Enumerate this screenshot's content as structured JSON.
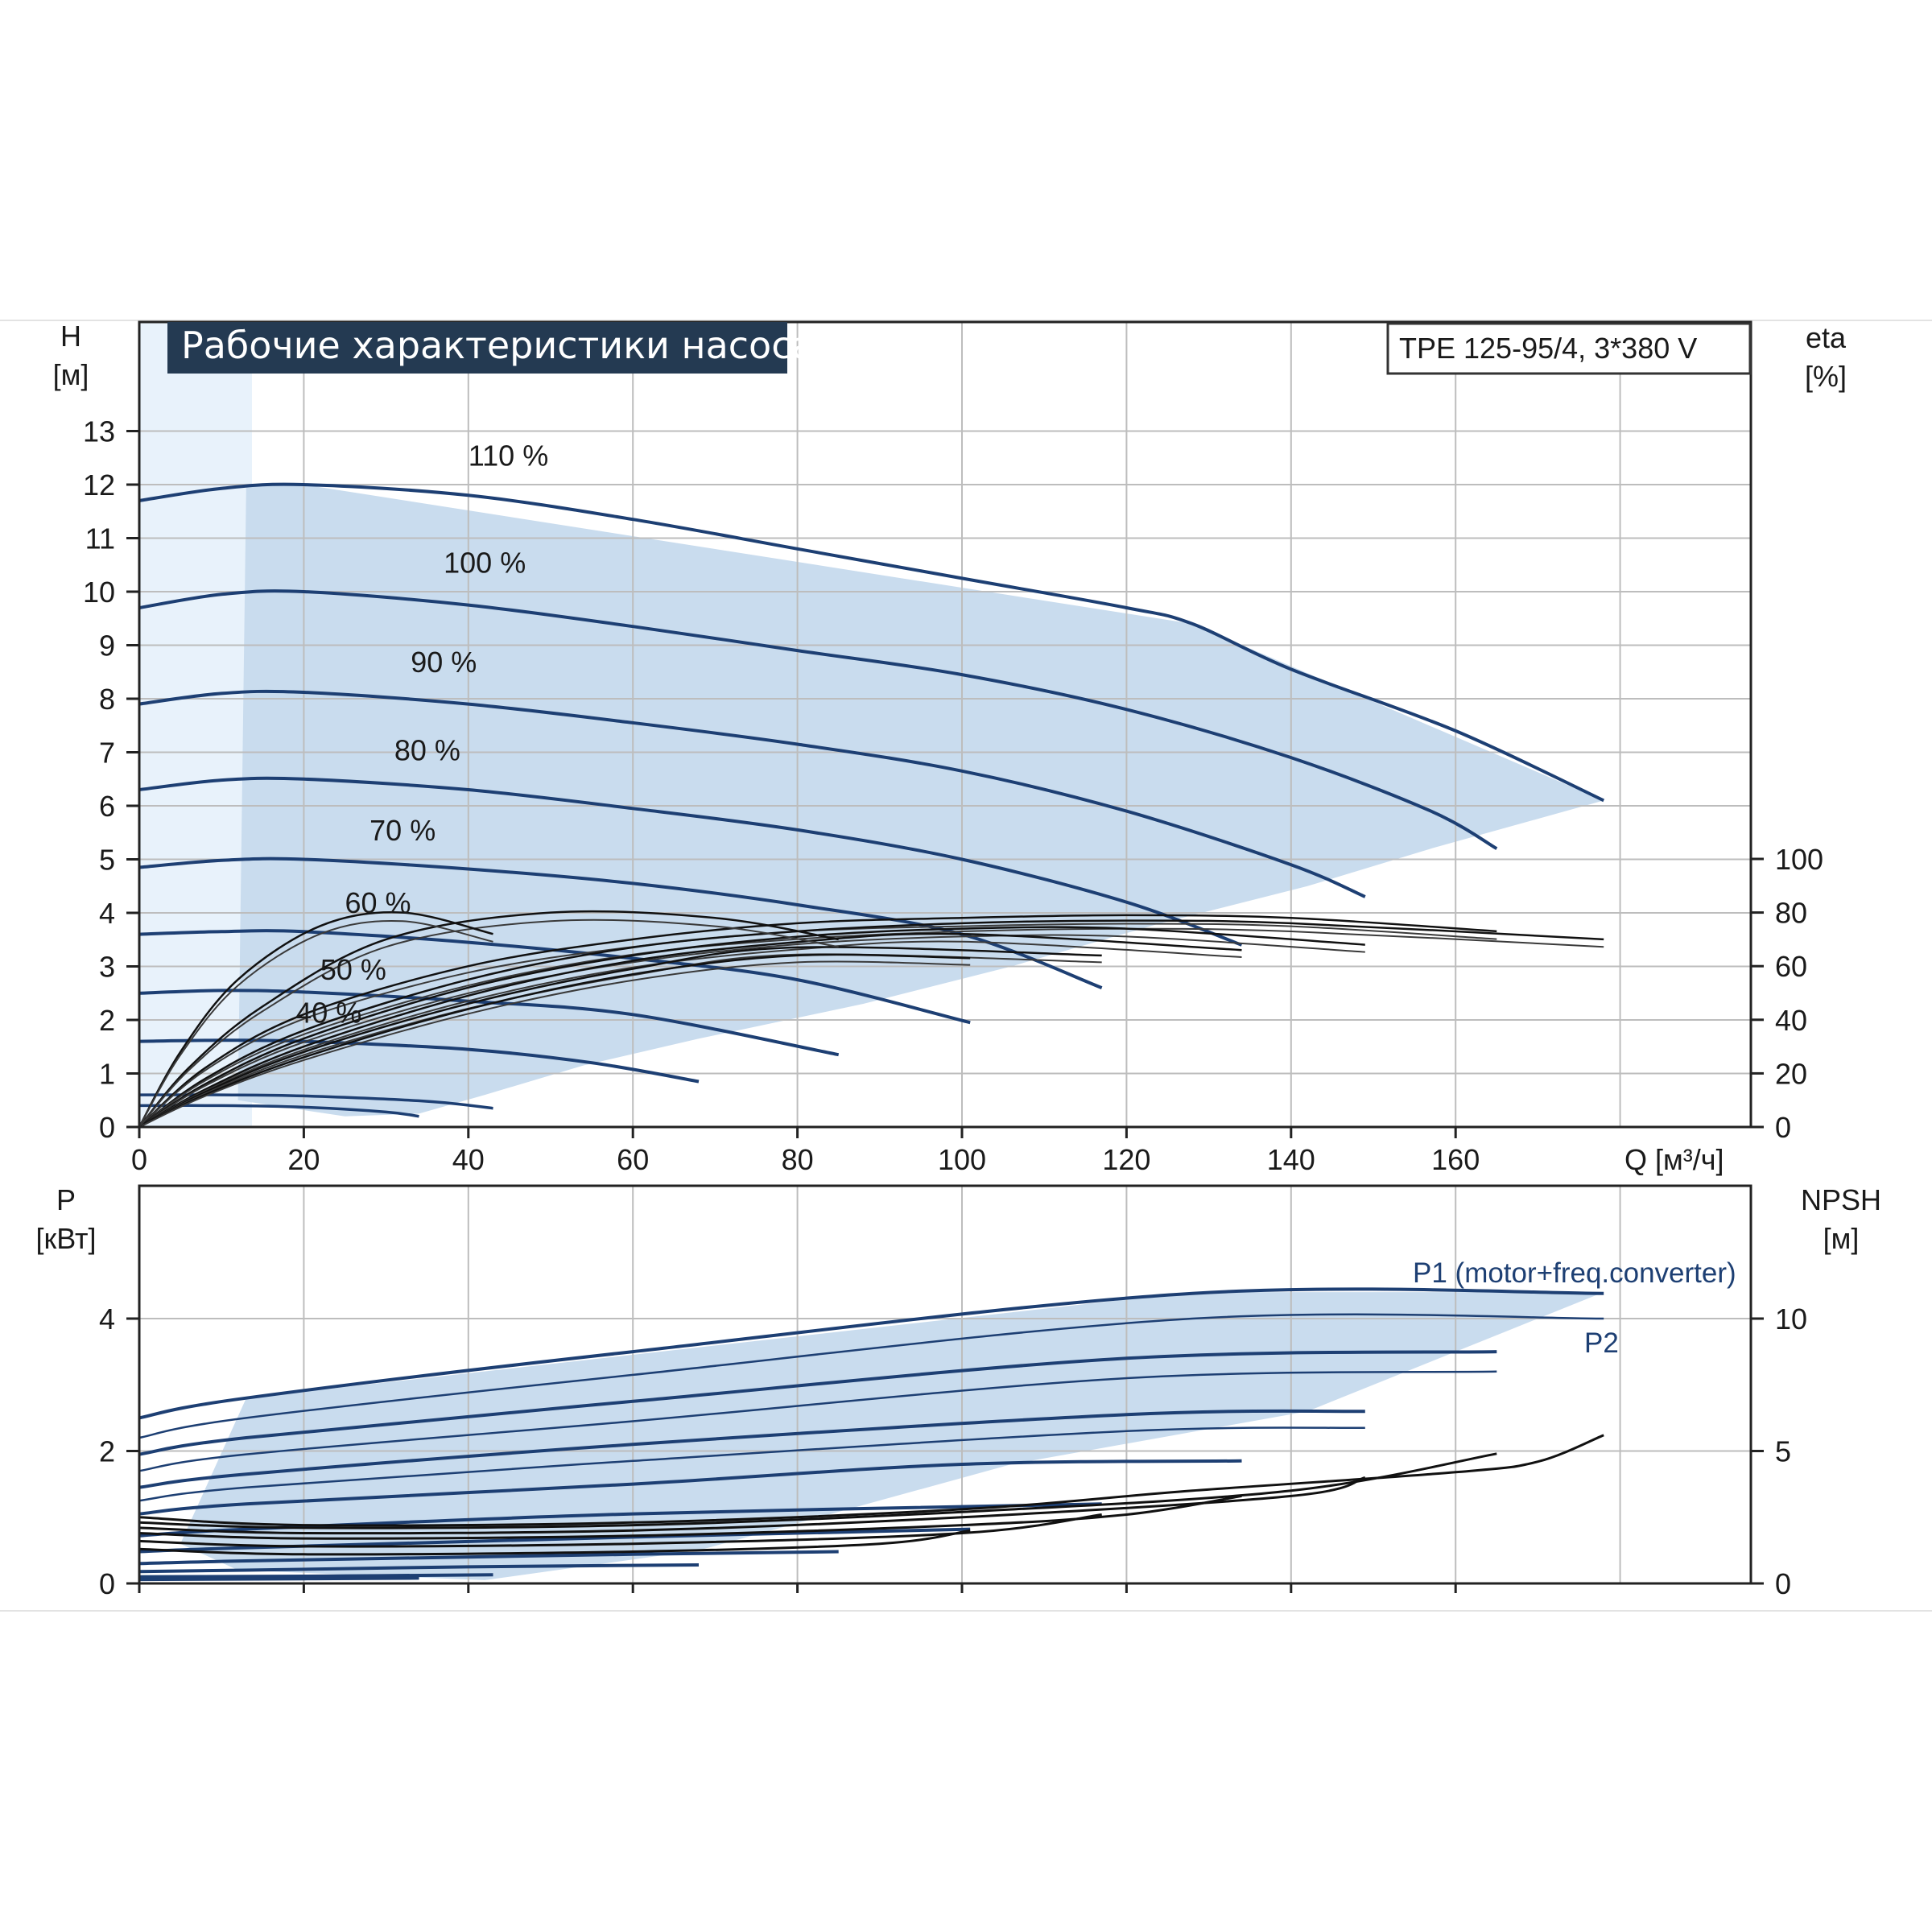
{
  "title": "Рабочие характеристики насоса",
  "model": "TPE 125-95/4, 3*380 V",
  "colors": {
    "curve_blue": "#1d3f73",
    "region_fill": "#c9dcee",
    "region_light": "#e8f2fb",
    "eta_black": "#111111",
    "title_bg": "#243a52"
  },
  "chart_data": [
    {
      "type": "line",
      "panel": "head",
      "xlabel": "Q [м³/ч]",
      "ylabel": "H\n[м]",
      "y2label": "eta\n[%]",
      "xlim": [
        0,
        195
      ],
      "ylim": [
        0,
        13.7
      ],
      "y2lim": [
        0,
        130
      ],
      "x_ticks": [
        0,
        20,
        40,
        60,
        80,
        100,
        120,
        140,
        160
      ],
      "y_ticks": [
        0,
        1,
        2,
        3,
        4,
        5,
        6,
        7,
        8,
        9,
        10,
        11,
        12,
        13
      ],
      "y2_ticks": [
        0,
        20,
        40,
        60,
        80,
        100
      ],
      "grid": true,
      "operating_region": [
        [
          13,
          12
        ],
        [
          20,
          12
        ],
        [
          128,
          9.4
        ],
        [
          178,
          6.1
        ],
        [
          157,
          5.2
        ],
        [
          142,
          4.5
        ],
        [
          124,
          3.8
        ],
        [
          106,
          3.0
        ],
        [
          88,
          2.3
        ],
        [
          68,
          1.65
        ],
        [
          54,
          1.15
        ],
        [
          42,
          0.6
        ],
        [
          34,
          0.25
        ],
        [
          25,
          0.2
        ],
        [
          12,
          0.5
        ]
      ],
      "series": [
        {
          "name": "110 %",
          "label_at": [
            40,
            12.35
          ],
          "x": [
            0,
            10,
            20,
            40,
            60,
            80,
            100,
            120,
            128,
            140,
            160,
            178
          ],
          "y": [
            11.7,
            11.93,
            12.0,
            11.8,
            11.35,
            10.8,
            10.25,
            9.7,
            9.4,
            8.55,
            7.4,
            6.1
          ]
        },
        {
          "name": "100 %",
          "label_at": [
            37,
            10.35
          ],
          "x": [
            0,
            10,
            20,
            40,
            60,
            80,
            100,
            120,
            140,
            157,
            165
          ],
          "y": [
            9.7,
            9.95,
            10.0,
            9.75,
            9.35,
            8.9,
            8.45,
            7.8,
            6.9,
            5.9,
            5.2
          ]
        },
        {
          "name": "90 %",
          "label_at": [
            33,
            8.5
          ],
          "x": [
            0,
            10,
            20,
            40,
            60,
            80,
            100,
            120,
            140,
            149
          ],
          "y": [
            7.9,
            8.1,
            8.12,
            7.9,
            7.55,
            7.15,
            6.65,
            5.9,
            4.9,
            4.3
          ]
        },
        {
          "name": "80 %",
          "label_at": [
            31,
            6.85
          ],
          "x": [
            0,
            10,
            20,
            40,
            60,
            80,
            100,
            120,
            134
          ],
          "y": [
            6.3,
            6.48,
            6.5,
            6.3,
            5.95,
            5.55,
            5.0,
            4.2,
            3.4
          ]
        },
        {
          "name": "70 %",
          "label_at": [
            28,
            5.35
          ],
          "x": [
            0,
            10,
            20,
            40,
            60,
            80,
            100,
            117
          ],
          "y": [
            4.85,
            4.98,
            5.0,
            4.82,
            4.55,
            4.15,
            3.6,
            2.6
          ]
        },
        {
          "name": "60 %",
          "label_at": [
            25,
            4.0
          ],
          "x": [
            0,
            10,
            20,
            40,
            60,
            80,
            101
          ],
          "y": [
            3.6,
            3.65,
            3.65,
            3.45,
            3.15,
            2.75,
            1.95
          ]
        },
        {
          "name": "50 %",
          "label_at": [
            22,
            2.75
          ],
          "x": [
            0,
            10,
            20,
            40,
            60,
            85
          ],
          "y": [
            2.5,
            2.55,
            2.52,
            2.35,
            2.1,
            1.35
          ]
        },
        {
          "name": "40 %",
          "label_at": [
            19,
            1.95
          ],
          "x": [
            0,
            10,
            20,
            40,
            55,
            68
          ],
          "y": [
            1.6,
            1.62,
            1.6,
            1.45,
            1.2,
            0.85
          ]
        },
        {
          "name": "",
          "x": [
            0,
            10,
            20,
            35,
            43
          ],
          "y": [
            0.6,
            0.6,
            0.58,
            0.48,
            0.35
          ]
        },
        {
          "name": "",
          "x": [
            0,
            10,
            20,
            30,
            34
          ],
          "y": [
            0.4,
            0.4,
            0.37,
            0.28,
            0.2
          ]
        }
      ],
      "eta_series": [
        {
          "name": "",
          "x": [
            0,
            8,
            20,
            40,
            60,
            80,
            100,
            120,
            140,
            165
          ],
          "y": [
            0,
            22,
            42,
            60,
            70,
            76,
            78,
            79,
            78,
            73
          ]
        },
        {
          "name": "",
          "x": [
            0,
            8,
            20,
            40,
            60,
            80,
            100,
            120,
            140,
            178
          ],
          "y": [
            0,
            18,
            36,
            55,
            67,
            73,
            76,
            77,
            76,
            70
          ]
        },
        {
          "name": "",
          "x": [
            0,
            8,
            20,
            40,
            60,
            80,
            100,
            120,
            149
          ],
          "y": [
            0,
            16,
            33,
            52,
            64,
            71,
            74,
            74,
            68
          ]
        },
        {
          "name": "",
          "x": [
            0,
            8,
            20,
            40,
            60,
            80,
            100,
            134
          ],
          "y": [
            0,
            14,
            30,
            49,
            62,
            69,
            72,
            66
          ]
        },
        {
          "name": "",
          "x": [
            0,
            8,
            20,
            40,
            60,
            80,
            117
          ],
          "y": [
            0,
            13,
            28,
            46,
            59,
            67,
            64
          ]
        },
        {
          "name": "",
          "x": [
            0,
            8,
            20,
            40,
            60,
            80,
            101
          ],
          "y": [
            0,
            12,
            26,
            44,
            57,
            64,
            63
          ]
        },
        {
          "name": "",
          "x": [
            0,
            6,
            15,
            30,
            50,
            70,
            85
          ],
          "y": [
            0,
            22,
            45,
            70,
            80,
            78,
            70
          ]
        },
        {
          "name": "",
          "x": [
            0,
            5,
            12,
            22,
            32,
            43
          ],
          "y": [
            0,
            28,
            55,
            75,
            80,
            72
          ]
        }
      ]
    },
    {
      "type": "line",
      "panel": "power",
      "ylabel": "P\n[кВт]",
      "y2label": "NPSH\n[м]",
      "xlim": [
        0,
        195
      ],
      "ylim": [
        0,
        5.3
      ],
      "y2lim": [
        0,
        13.2
      ],
      "y_ticks": [
        0,
        2,
        4
      ],
      "y2_ticks": [
        0,
        5,
        10
      ],
      "grid": true,
      "operating_region": [
        [
          13,
          2.8
        ],
        [
          128,
          4.4
        ],
        [
          178,
          4.4
        ],
        [
          142,
          2.6
        ],
        [
          106,
          1.8
        ],
        [
          68,
          0.5
        ],
        [
          42,
          0.05
        ],
        [
          12,
          0.2
        ],
        [
          5,
          0.6
        ]
      ],
      "legend_labels": [
        "P1 (motor+freq.converter)",
        "P2"
      ],
      "p1_series": [
        {
          "name": "P1 (motor+freq.converter)",
          "x": [
            0,
            13,
            60,
            128,
            178
          ],
          "y": [
            2.5,
            2.8,
            3.5,
            4.38,
            4.38
          ]
        },
        {
          "name": "",
          "x": [
            0,
            13,
            60,
            120,
            165
          ],
          "y": [
            1.95,
            2.2,
            2.75,
            3.4,
            3.5
          ]
        },
        {
          "name": "",
          "x": [
            0,
            13,
            60,
            120,
            149
          ],
          "y": [
            1.45,
            1.65,
            2.1,
            2.55,
            2.6
          ]
        },
        {
          "name": "",
          "x": [
            0,
            13,
            60,
            100,
            134
          ],
          "y": [
            1.05,
            1.2,
            1.5,
            1.8,
            1.85
          ]
        },
        {
          "name": "",
          "x": [
            0,
            13,
            60,
            117
          ],
          "y": [
            0.72,
            0.82,
            1.05,
            1.2
          ]
        },
        {
          "name": "",
          "x": [
            0,
            13,
            60,
            101
          ],
          "y": [
            0.48,
            0.54,
            0.7,
            0.82
          ]
        },
        {
          "name": "",
          "x": [
            0,
            13,
            60,
            85
          ],
          "y": [
            0.3,
            0.34,
            0.44,
            0.48
          ]
        },
        {
          "name": "",
          "x": [
            0,
            13,
            40,
            68
          ],
          "y": [
            0.18,
            0.2,
            0.25,
            0.28
          ]
        },
        {
          "name": "",
          "x": [
            0,
            20,
            43
          ],
          "y": [
            0.1,
            0.11,
            0.13
          ]
        },
        {
          "name": "",
          "x": [
            0,
            20,
            34
          ],
          "y": [
            0.06,
            0.07,
            0.08
          ]
        }
      ],
      "p2_series": [
        {
          "name": "P2",
          "x": [
            0,
            13,
            60,
            128,
            178
          ],
          "y": [
            2.2,
            2.5,
            3.15,
            4.0,
            4.0
          ]
        },
        {
          "name": "",
          "x": [
            0,
            13,
            60,
            120,
            165
          ],
          "y": [
            1.7,
            1.95,
            2.45,
            3.1,
            3.2
          ]
        },
        {
          "name": "",
          "x": [
            0,
            13,
            60,
            120,
            149
          ],
          "y": [
            1.25,
            1.45,
            1.85,
            2.3,
            2.35
          ]
        }
      ],
      "npsh_series": [
        {
          "name": "",
          "x": [
            0,
            20,
            60,
            100,
            128,
            160,
            170,
            178
          ],
          "y": [
            2.5,
            2.2,
            2.3,
            2.8,
            3.5,
            4.2,
            4.6,
            5.6
          ]
        },
        {
          "name": "",
          "x": [
            0,
            20,
            60,
            100,
            140,
            165
          ],
          "y": [
            2.3,
            2.1,
            2.2,
            2.7,
            3.5,
            4.9
          ]
        },
        {
          "name": "",
          "x": [
            0,
            20,
            60,
            100,
            140,
            149
          ],
          "y": [
            2.1,
            1.9,
            2.0,
            2.5,
            3.3,
            4.0
          ]
        },
        {
          "name": "",
          "x": [
            0,
            20,
            60,
            100,
            120,
            134
          ],
          "y": [
            1.9,
            1.7,
            1.8,
            2.2,
            2.6,
            3.3
          ]
        },
        {
          "name": "",
          "x": [
            0,
            20,
            60,
            100,
            117
          ],
          "y": [
            1.6,
            1.4,
            1.5,
            1.9,
            2.6
          ]
        },
        {
          "name": "",
          "x": [
            0,
            20,
            60,
            90,
            101
          ],
          "y": [
            1.3,
            1.1,
            1.2,
            1.5,
            2.0
          ]
        }
      ]
    }
  ]
}
